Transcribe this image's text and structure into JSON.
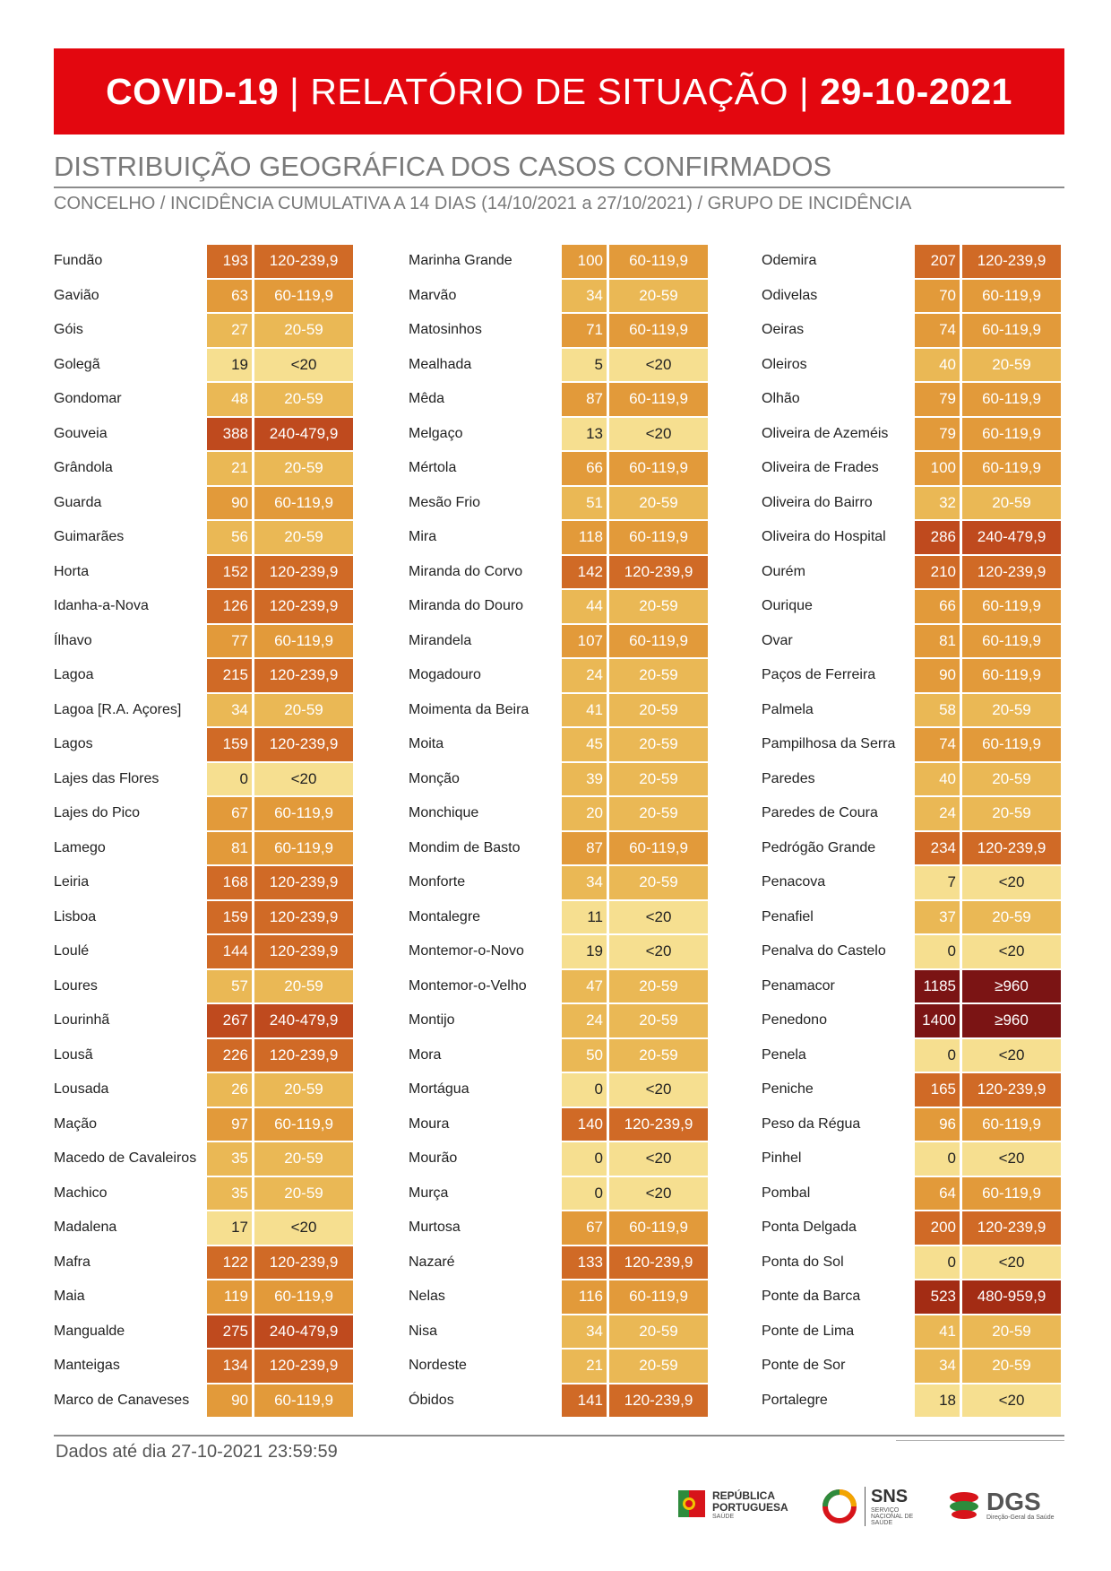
{
  "header": {
    "title_bold": "COVID-19",
    "title_mid": "RELATÓRIO DE SITUAÇÃO",
    "title_date": "29-10-2021"
  },
  "section": {
    "title": "DISTRIBUIÇÃO GEOGRÁFICA DOS CASOS CONFIRMADOS",
    "subtitle": "CONCELHO / INCIDÊNCIA CUMULATIVA A 14 DIAS (14/10/2021 a 27/10/2021) / GRUPO DE INCIDÊNCIA"
  },
  "columns": [
    [
      [
        "Fundão",
        "193",
        "120-239,9"
      ],
      [
        "Gavião",
        "63",
        "60-119,9"
      ],
      [
        "Góis",
        "27",
        "20-59"
      ],
      [
        "Golegã",
        "19",
        "<20"
      ],
      [
        "Gondomar",
        "48",
        "20-59"
      ],
      [
        "Gouveia",
        "388",
        "240-479,9"
      ],
      [
        "Grândola",
        "21",
        "20-59"
      ],
      [
        "Guarda",
        "90",
        "60-119,9"
      ],
      [
        "Guimarães",
        "56",
        "20-59"
      ],
      [
        "Horta",
        "152",
        "120-239,9"
      ],
      [
        "Idanha-a-Nova",
        "126",
        "120-239,9"
      ],
      [
        "Ílhavo",
        "77",
        "60-119,9"
      ],
      [
        "Lagoa",
        "215",
        "120-239,9"
      ],
      [
        "Lagoa [R.A. Açores]",
        "34",
        "20-59"
      ],
      [
        "Lagos",
        "159",
        "120-239,9"
      ],
      [
        "Lajes das Flores",
        "0",
        "<20"
      ],
      [
        "Lajes do Pico",
        "67",
        "60-119,9"
      ],
      [
        "Lamego",
        "81",
        "60-119,9"
      ],
      [
        "Leiria",
        "168",
        "120-239,9"
      ],
      [
        "Lisboa",
        "159",
        "120-239,9"
      ],
      [
        "Loulé",
        "144",
        "120-239,9"
      ],
      [
        "Loures",
        "57",
        "20-59"
      ],
      [
        "Lourinhã",
        "267",
        "240-479,9"
      ],
      [
        "Lousã",
        "226",
        "120-239,9"
      ],
      [
        "Lousada",
        "26",
        "20-59"
      ],
      [
        "Mação",
        "97",
        "60-119,9"
      ],
      [
        "Macedo de Cavaleiros",
        "35",
        "20-59"
      ],
      [
        "Machico",
        "35",
        "20-59"
      ],
      [
        "Madalena",
        "17",
        "<20"
      ],
      [
        "Mafra",
        "122",
        "120-239,9"
      ],
      [
        "Maia",
        "119",
        "60-119,9"
      ],
      [
        "Mangualde",
        "275",
        "240-479,9"
      ],
      [
        "Manteigas",
        "134",
        "120-239,9"
      ],
      [
        "Marco de Canaveses",
        "90",
        "60-119,9"
      ]
    ],
    [
      [
        "Marinha Grande",
        "100",
        "60-119,9"
      ],
      [
        "Marvão",
        "34",
        "20-59"
      ],
      [
        "Matosinhos",
        "71",
        "60-119,9"
      ],
      [
        "Mealhada",
        "5",
        "<20"
      ],
      [
        "Mêda",
        "87",
        "60-119,9"
      ],
      [
        "Melgaço",
        "13",
        "<20"
      ],
      [
        "Mértola",
        "66",
        "60-119,9"
      ],
      [
        "Mesão Frio",
        "51",
        "20-59"
      ],
      [
        "Mira",
        "118",
        "60-119,9"
      ],
      [
        "Miranda do Corvo",
        "142",
        "120-239,9"
      ],
      [
        "Miranda do Douro",
        "44",
        "20-59"
      ],
      [
        "Mirandela",
        "107",
        "60-119,9"
      ],
      [
        "Mogadouro",
        "24",
        "20-59"
      ],
      [
        "Moimenta da Beira",
        "41",
        "20-59"
      ],
      [
        "Moita",
        "45",
        "20-59"
      ],
      [
        "Monção",
        "39",
        "20-59"
      ],
      [
        "Monchique",
        "20",
        "20-59"
      ],
      [
        "Mondim de Basto",
        "87",
        "60-119,9"
      ],
      [
        "Monforte",
        "34",
        "20-59"
      ],
      [
        "Montalegre",
        "11",
        "<20"
      ],
      [
        "Montemor-o-Novo",
        "19",
        "<20"
      ],
      [
        "Montemor-o-Velho",
        "47",
        "20-59"
      ],
      [
        "Montijo",
        "24",
        "20-59"
      ],
      [
        "Mora",
        "50",
        "20-59"
      ],
      [
        "Mortágua",
        "0",
        "<20"
      ],
      [
        "Moura",
        "140",
        "120-239,9"
      ],
      [
        "Mourão",
        "0",
        "<20"
      ],
      [
        "Murça",
        "0",
        "<20"
      ],
      [
        "Murtosa",
        "67",
        "60-119,9"
      ],
      [
        "Nazaré",
        "133",
        "120-239,9"
      ],
      [
        "Nelas",
        "116",
        "60-119,9"
      ],
      [
        "Nisa",
        "34",
        "20-59"
      ],
      [
        "Nordeste",
        "21",
        "20-59"
      ],
      [
        "Óbidos",
        "141",
        "120-239,9"
      ]
    ],
    [
      [
        "Odemira",
        "207",
        "120-239,9"
      ],
      [
        "Odivelas",
        "70",
        "60-119,9"
      ],
      [
        "Oeiras",
        "74",
        "60-119,9"
      ],
      [
        "Oleiros",
        "40",
        "20-59"
      ],
      [
        "Olhão",
        "79",
        "60-119,9"
      ],
      [
        "Oliveira de Azeméis",
        "79",
        "60-119,9"
      ],
      [
        "Oliveira de Frades",
        "100",
        "60-119,9"
      ],
      [
        "Oliveira do Bairro",
        "32",
        "20-59"
      ],
      [
        "Oliveira do Hospital",
        "286",
        "240-479,9"
      ],
      [
        "Ourém",
        "210",
        "120-239,9"
      ],
      [
        "Ourique",
        "66",
        "60-119,9"
      ],
      [
        "Ovar",
        "81",
        "60-119,9"
      ],
      [
        "Paços de Ferreira",
        "90",
        "60-119,9"
      ],
      [
        "Palmela",
        "58",
        "20-59"
      ],
      [
        "Pampilhosa da Serra",
        "74",
        "60-119,9"
      ],
      [
        "Paredes",
        "40",
        "20-59"
      ],
      [
        "Paredes de Coura",
        "24",
        "20-59"
      ],
      [
        "Pedrógão Grande",
        "234",
        "120-239,9"
      ],
      [
        "Penacova",
        "7",
        "<20"
      ],
      [
        "Penafiel",
        "37",
        "20-59"
      ],
      [
        "Penalva do Castelo",
        "0",
        "<20"
      ],
      [
        "Penamacor",
        "1185",
        "≥960"
      ],
      [
        "Penedono",
        "1400",
        "≥960"
      ],
      [
        "Penela",
        "0",
        "<20"
      ],
      [
        "Peniche",
        "165",
        "120-239,9"
      ],
      [
        "Peso da Régua",
        "96",
        "60-119,9"
      ],
      [
        "Pinhel",
        "0",
        "<20"
      ],
      [
        "Pombal",
        "64",
        "60-119,9"
      ],
      [
        "Ponta Delgada",
        "200",
        "120-239,9"
      ],
      [
        "Ponta do Sol",
        "0",
        "<20"
      ],
      [
        "Ponte da Barca",
        "523",
        "480-959,9"
      ],
      [
        "Ponte de Lima",
        "41",
        "20-59"
      ],
      [
        "Ponte de Sor",
        "34",
        "20-59"
      ],
      [
        "Portalegre",
        "18",
        "<20"
      ]
    ]
  ],
  "group_colors": {
    "<20": "#f6df90",
    "20-59": "#eab855",
    "60-119,9": "#e29a3a",
    "120-239,9": "#d06a26",
    "240-479,9": "#bf4a1e",
    "480-959,9": "#a32c14",
    "≥960": "#7b1414"
  },
  "footer": {
    "text": "Dados até dia 27-10-2021 23:59:59",
    "logo1_line1": "REPÚBLICA",
    "logo1_line2": "PORTUGUESA",
    "logo1_small": "SAÚDE",
    "logo2_big": "SNS",
    "logo2_small": "SERVIÇO NACIONAL DE SAÚDE",
    "logo3_big": "DGS",
    "logo3_small": "Direção-Geral da Saúde"
  }
}
